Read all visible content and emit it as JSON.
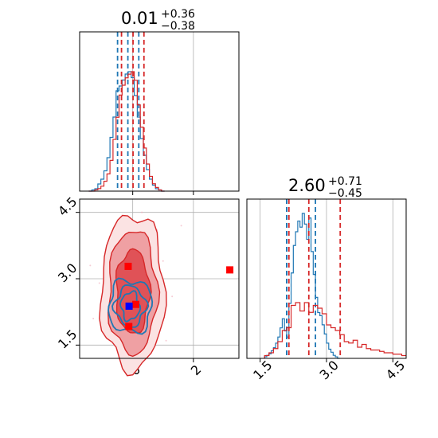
{
  "chart_data": [
    {
      "panel": "x-marginal",
      "type": "step-histogram",
      "title": {
        "main": "0.01",
        "sup": "+0.36",
        "sub": "−0.38"
      },
      "xlim": [
        -1.75,
        3.5
      ],
      "grid": true,
      "series": [
        {
          "color": "#1f77b4",
          "edges": [
            -1.45,
            -1.35,
            -1.25,
            -1.15,
            -1.05,
            -0.95,
            -0.85,
            -0.75,
            -0.65,
            -0.55,
            -0.45,
            -0.35,
            -0.25,
            -0.15,
            -0.05,
            0.05,
            0.15,
            0.25,
            0.35,
            0.45,
            0.55,
            0.65,
            0.75,
            0.85,
            0.95,
            1.05
          ],
          "counts": [
            0.0,
            0.01,
            0.02,
            0.06,
            0.1,
            0.17,
            0.28,
            0.45,
            0.62,
            0.84,
            0.88,
            0.93,
            0.98,
            1.0,
            0.95,
            0.8,
            0.62,
            0.44,
            0.3,
            0.18,
            0.1,
            0.05,
            0.02,
            0.01,
            0.0
          ],
          "quantile_lines": [
            -0.5,
            -0.16,
            0.2
          ]
        },
        {
          "color": "#d62728",
          "edges": [
            -1.45,
            -1.35,
            -1.25,
            -1.15,
            -1.05,
            -0.95,
            -0.85,
            -0.75,
            -0.65,
            -0.55,
            -0.45,
            -0.35,
            -0.25,
            -0.15,
            -0.05,
            0.05,
            0.15,
            0.25,
            0.35,
            0.45,
            0.55,
            0.65,
            0.75,
            0.85,
            0.95,
            1.05
          ],
          "counts": [
            0.0,
            0.0,
            0.01,
            0.02,
            0.04,
            0.08,
            0.14,
            0.25,
            0.42,
            0.6,
            0.78,
            0.86,
            0.92,
            0.95,
            0.97,
            0.9,
            0.7,
            0.52,
            0.35,
            0.22,
            0.12,
            0.06,
            0.03,
            0.01,
            0.0
          ],
          "quantile_lines": [
            -0.37,
            0.01,
            0.37
          ]
        }
      ]
    },
    {
      "panel": "joint",
      "type": "contour",
      "xlim": [
        -1.75,
        3.5
      ],
      "ylim": [
        1.2,
        4.8
      ],
      "xticks": [
        "0",
        "2"
      ],
      "yticks": [
        "1.5",
        "3.0",
        "4.5"
      ],
      "xtick_values": [
        0,
        2
      ],
      "ytick_values": [
        1.5,
        3.0,
        4.5
      ],
      "grid": true,
      "series": [
        {
          "color": "#d62728",
          "center": [
            0.0,
            2.7
          ],
          "levels": [
            [
              0.55,
              0.95
            ],
            [
              0.8,
              1.4
            ],
            [
              1.05,
              1.75
            ]
          ]
        },
        {
          "color": "#1f77b4",
          "center": [
            -0.08,
            2.38
          ],
          "levels": [
            [
              0.3,
              0.32
            ],
            [
              0.5,
              0.45
            ],
            [
              0.72,
              0.6
            ]
          ]
        }
      ],
      "markers": [
        {
          "color": "#ff0000",
          "x": 3.2,
          "y": 3.2
        },
        {
          "color": "#ff0000",
          "x": -0.15,
          "y": 3.28
        },
        {
          "color": "#ff0000",
          "x": 0.1,
          "y": 2.42
        },
        {
          "color": "#ff0000",
          "x": -0.13,
          "y": 1.92
        },
        {
          "color": "#0000ff",
          "x": -0.12,
          "y": 2.38
        }
      ]
    },
    {
      "panel": "y-marginal",
      "type": "step-histogram",
      "title": {
        "main": "2.60",
        "sup": "+0.71",
        "sub": "−0.45"
      },
      "xlim": [
        1.2,
        4.8
      ],
      "xticks": [
        "1.5",
        "3.0",
        "4.5"
      ],
      "xtick_values": [
        1.5,
        3.0,
        4.5
      ],
      "grid": true,
      "series": [
        {
          "color": "#1f77b4",
          "edges": [
            1.6,
            1.65,
            1.7,
            1.75,
            1.8,
            1.85,
            1.9,
            1.95,
            2.0,
            2.05,
            2.1,
            2.15,
            2.2,
            2.25,
            2.3,
            2.35,
            2.4,
            2.45,
            2.5,
            2.55,
            2.6,
            2.65,
            2.7,
            2.75,
            2.8,
            2.85,
            2.9,
            2.95,
            3.0,
            3.05,
            3.1,
            3.15,
            3.2,
            3.25,
            3.3
          ],
          "counts": [
            0.01,
            0.02,
            0.03,
            0.05,
            0.07,
            0.1,
            0.14,
            0.2,
            0.26,
            0.18,
            0.14,
            0.36,
            0.56,
            0.74,
            0.83,
            0.9,
            0.86,
            0.95,
            0.88,
            0.78,
            0.92,
            0.7,
            0.55,
            0.4,
            0.3,
            0.28,
            0.22,
            0.16,
            0.1,
            0.06,
            0.04,
            0.02,
            0.01,
            0.0
          ],
          "quantile_lines": [
            2.1,
            2.1,
            2.75
          ]
        },
        {
          "color": "#d62728",
          "edges": [
            1.6,
            1.7,
            1.8,
            1.9,
            2.0,
            2.1,
            2.2,
            2.3,
            2.4,
            2.5,
            2.6,
            2.7,
            2.8,
            2.9,
            3.0,
            3.1,
            3.2,
            3.3,
            3.4,
            3.5,
            3.6,
            3.7,
            3.8,
            3.9,
            4.0,
            4.1,
            4.2,
            4.3,
            4.4,
            4.5,
            4.6,
            4.7,
            4.8
          ],
          "counts": [
            0.02,
            0.04,
            0.07,
            0.12,
            0.2,
            0.22,
            0.38,
            0.4,
            0.34,
            0.4,
            0.33,
            0.38,
            0.36,
            0.32,
            0.24,
            0.22,
            0.2,
            0.17,
            0.12,
            0.11,
            0.13,
            0.08,
            0.1,
            0.07,
            0.06,
            0.06,
            0.05,
            0.04,
            0.04,
            0.03,
            0.03,
            0.02
          ],
          "quantile_lines": [
            2.15,
            2.6,
            3.31
          ]
        }
      ]
    }
  ]
}
